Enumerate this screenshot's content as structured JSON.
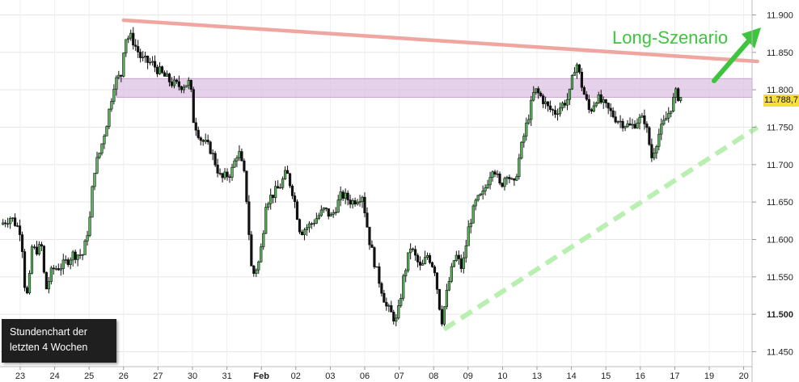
{
  "caption": {
    "line1": "Stundenchart der",
    "line2": "letzten 4 Wochen"
  },
  "scenario_label": "Long-Szenario",
  "price_badge": "11.788,7",
  "colors": {
    "resistance_line": "#f0a6a0",
    "support_line": "#b9f0b1",
    "zone_fill": "#d9b8de",
    "arrow": "#3fc43f",
    "badge": "#f5de3a",
    "candle": "#111111",
    "candle_up_body": "#58b85a"
  },
  "chart_data": {
    "type": "candlestick",
    "title": "",
    "xlabel": "",
    "ylabel": "",
    "ylim": [
      11430,
      11920
    ],
    "y_ticks": [
      {
        "value": 11450,
        "label": "11.450"
      },
      {
        "value": 11500,
        "label": "11.500",
        "bold": true
      },
      {
        "value": 11550,
        "label": "11.550"
      },
      {
        "value": 11600,
        "label": "11.600"
      },
      {
        "value": 11650,
        "label": "11.650"
      },
      {
        "value": 11700,
        "label": "11.700"
      },
      {
        "value": 11750,
        "label": "11.750"
      },
      {
        "value": 11800,
        "label": "11.800"
      },
      {
        "value": 11850,
        "label": "11.850"
      },
      {
        "value": 11900,
        "label": "11.900"
      }
    ],
    "x_ticks": [
      {
        "label": "23"
      },
      {
        "label": "24"
      },
      {
        "label": "25"
      },
      {
        "label": "26"
      },
      {
        "label": "27"
      },
      {
        "label": "30"
      },
      {
        "label": "31"
      },
      {
        "label": "Feb",
        "bold": true
      },
      {
        "label": "02"
      },
      {
        "label": "03"
      },
      {
        "label": "06"
      },
      {
        "label": "07"
      },
      {
        "label": "08"
      },
      {
        "label": "09"
      },
      {
        "label": "10"
      },
      {
        "label": "13"
      },
      {
        "label": "14"
      },
      {
        "label": "15"
      },
      {
        "label": "16"
      },
      {
        "label": "17"
      },
      {
        "label": "19"
      },
      {
        "label": "20"
      }
    ],
    "last_price": 11788.7,
    "resistance_zone": [
      11790,
      11815
    ],
    "resistance_line": {
      "start": {
        "x": 3,
        "y": 11893
      },
      "end": {
        "x": 21.4,
        "y": 11838
      }
    },
    "support_line": {
      "start": {
        "x": 12.3,
        "y": 11480
      },
      "end": {
        "x": 21.4,
        "y": 11750
      }
    },
    "price_path": [
      [
        -0.5,
        11620
      ],
      [
        -0.2,
        11630
      ],
      [
        0.1,
        11610
      ],
      [
        0.2,
        11540
      ],
      [
        0.3,
        11520
      ],
      [
        0.4,
        11590
      ],
      [
        0.5,
        11585
      ],
      [
        0.7,
        11590
      ],
      [
        0.8,
        11530
      ],
      [
        1.0,
        11560
      ],
      [
        1.3,
        11565
      ],
      [
        1.6,
        11580
      ],
      [
        1.9,
        11580
      ],
      [
        2.1,
        11630
      ],
      [
        2.2,
        11690
      ],
      [
        2.4,
        11720
      ],
      [
        2.6,
        11760
      ],
      [
        2.8,
        11810
      ],
      [
        3.0,
        11820
      ],
      [
        3.1,
        11870
      ],
      [
        3.3,
        11870
      ],
      [
        3.6,
        11840
      ],
      [
        3.9,
        11835
      ],
      [
        4.2,
        11820
      ],
      [
        4.5,
        11808
      ],
      [
        4.7,
        11805
      ],
      [
        5.0,
        11810
      ],
      [
        5.1,
        11760
      ],
      [
        5.3,
        11735
      ],
      [
        5.6,
        11720
      ],
      [
        5.9,
        11680
      ],
      [
        6.2,
        11690
      ],
      [
        6.4,
        11720
      ],
      [
        6.6,
        11680
      ],
      [
        6.8,
        11550
      ],
      [
        7.0,
        11570
      ],
      [
        7.1,
        11600
      ],
      [
        7.2,
        11650
      ],
      [
        7.4,
        11660
      ],
      [
        7.6,
        11670
      ],
      [
        7.8,
        11690
      ],
      [
        8.0,
        11660
      ],
      [
        8.2,
        11610
      ],
      [
        8.5,
        11620
      ],
      [
        8.9,
        11640
      ],
      [
        9.1,
        11630
      ],
      [
        9.4,
        11660
      ],
      [
        9.7,
        11650
      ],
      [
        10.0,
        11660
      ],
      [
        10.2,
        11600
      ],
      [
        10.4,
        11560
      ],
      [
        10.7,
        11510
      ],
      [
        11.0,
        11490
      ],
      [
        11.2,
        11550
      ],
      [
        11.4,
        11590
      ],
      [
        11.7,
        11560
      ],
      [
        11.9,
        11580
      ],
      [
        12.1,
        11560
      ],
      [
        12.3,
        11490
      ],
      [
        12.5,
        11540
      ],
      [
        12.7,
        11580
      ],
      [
        12.9,
        11560
      ],
      [
        13.1,
        11620
      ],
      [
        13.3,
        11650
      ],
      [
        13.5,
        11660
      ],
      [
        13.8,
        11700
      ],
      [
        14.0,
        11670
      ],
      [
        14.2,
        11690
      ],
      [
        14.4,
        11670
      ],
      [
        14.6,
        11720
      ],
      [
        14.8,
        11760
      ],
      [
        15.0,
        11800
      ],
      [
        15.2,
        11790
      ],
      [
        15.4,
        11775
      ],
      [
        15.6,
        11770
      ],
      [
        15.8,
        11780
      ],
      [
        16.0,
        11790
      ],
      [
        16.2,
        11840
      ],
      [
        16.4,
        11800
      ],
      [
        16.6,
        11770
      ],
      [
        16.8,
        11790
      ],
      [
        17.0,
        11780
      ],
      [
        17.2,
        11770
      ],
      [
        17.4,
        11760
      ],
      [
        17.6,
        11755
      ],
      [
        17.8,
        11750
      ],
      [
        18.0,
        11760
      ],
      [
        18.2,
        11760
      ],
      [
        18.4,
        11710
      ],
      [
        18.6,
        11740
      ],
      [
        18.9,
        11770
      ],
      [
        19.1,
        11795
      ],
      [
        19.2,
        11790
      ]
    ]
  }
}
